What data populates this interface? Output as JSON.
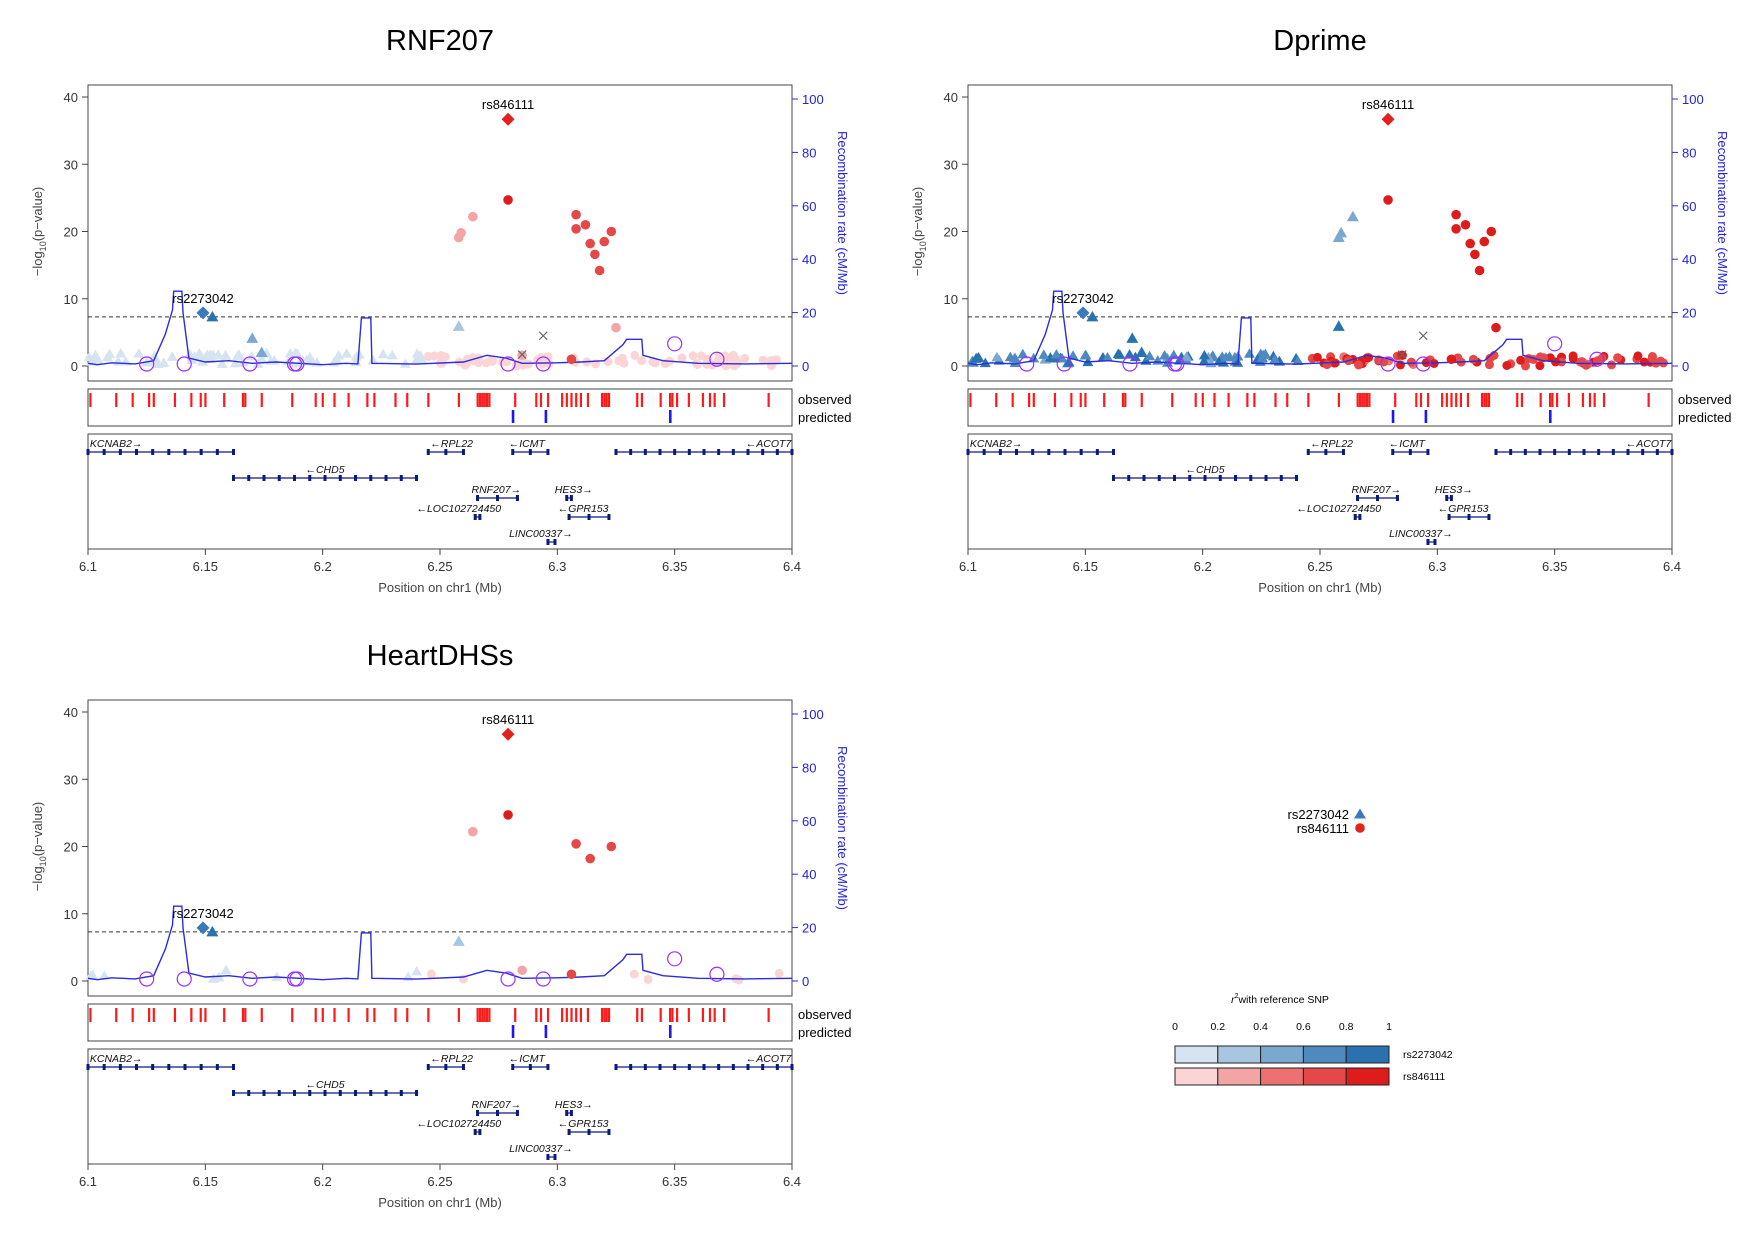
{
  "chart_data": {
    "type": "scatter",
    "panels": [
      {
        "id": "rnf207",
        "title": "RNF207",
        "mode": "rnf",
        "sparse": false
      },
      {
        "id": "dprime",
        "title": "Dprime",
        "mode": "dprime",
        "sparse": false
      },
      {
        "id": "heartdhss",
        "title": "HeartDHSs",
        "mode": "rnf",
        "sparse": true
      }
    ],
    "xlabel": "Position on chr1 (Mb)",
    "ylabel": "−log₁₀(p−value)",
    "ylabel_parts": [
      "−log",
      "10",
      "(p−value)"
    ],
    "y2label": "Recombination rate (cM/Mb)",
    "xlim": [
      6.1,
      6.4
    ],
    "ylim": [
      0,
      40
    ],
    "y2lim": [
      0,
      100
    ],
    "x_ticks": [
      6.1,
      6.15,
      6.2,
      6.25,
      6.3,
      6.35,
      6.4
    ],
    "x_tick_labels": [
      "6.1",
      "6.15",
      "6.2",
      "6.25",
      "6.3",
      "6.35",
      "6.4"
    ],
    "y_ticks": [
      0,
      10,
      20,
      30,
      40
    ],
    "y_tick_labels": [
      "0",
      "10",
      "20",
      "30",
      "40"
    ],
    "y2_ticks": [
      0,
      20,
      40,
      60,
      80,
      100
    ],
    "y2_tick_labels": [
      "0",
      "20",
      "40",
      "60",
      "80",
      "100"
    ],
    "significance_line": 7.3,
    "lead_snps": [
      {
        "name": "rs846111",
        "x": 6.279,
        "y": 36.7,
        "color": "#e3221c",
        "shape": "diamond"
      },
      {
        "name": "rs2273042",
        "x": 6.149,
        "y": 7.9,
        "color": "#3a7ab8",
        "shape": "diamond"
      }
    ],
    "recombination": [
      [
        6.1,
        1
      ],
      [
        6.104,
        0.5
      ],
      [
        6.11,
        1.2
      ],
      [
        6.12,
        0.8
      ],
      [
        6.128,
        2
      ],
      [
        6.133,
        12
      ],
      [
        6.136,
        21
      ],
      [
        6.1365,
        28
      ],
      [
        6.14,
        28
      ],
      [
        6.1405,
        20
      ],
      [
        6.143,
        3
      ],
      [
        6.15,
        1.5
      ],
      [
        6.16,
        2
      ],
      [
        6.17,
        1
      ],
      [
        6.18,
        1.5
      ],
      [
        6.19,
        1
      ],
      [
        6.2,
        0.5
      ],
      [
        6.21,
        1
      ],
      [
        6.215,
        0.8
      ],
      [
        6.2165,
        18
      ],
      [
        6.2205,
        18
      ],
      [
        6.221,
        1
      ],
      [
        6.24,
        0.7
      ],
      [
        6.26,
        1.5
      ],
      [
        6.27,
        4
      ],
      [
        6.278,
        3
      ],
      [
        6.285,
        1
      ],
      [
        6.3,
        1.2
      ],
      [
        6.31,
        1.5
      ],
      [
        6.32,
        2
      ],
      [
        6.328,
        8
      ],
      [
        6.3295,
        10
      ],
      [
        6.336,
        10
      ],
      [
        6.3365,
        4
      ],
      [
        6.345,
        2
      ],
      [
        6.36,
        1
      ],
      [
        6.38,
        0.8
      ],
      [
        6.4,
        1
      ]
    ],
    "points_red": [
      {
        "x": 6.279,
        "y": 24.7,
        "r2": 0.9
      },
      {
        "x": 6.258,
        "y": 19.1,
        "r2": 0.2
      },
      {
        "x": 6.259,
        "y": 19.8,
        "r2": 0.2
      },
      {
        "x": 6.264,
        "y": 22.2,
        "r2": 0.2
      },
      {
        "x": 6.308,
        "y": 22.5,
        "r2": 0.7
      },
      {
        "x": 6.308,
        "y": 20.4,
        "r2": 0.7
      },
      {
        "x": 6.312,
        "y": 21.0,
        "r2": 0.7
      },
      {
        "x": 6.314,
        "y": 18.2,
        "r2": 0.7
      },
      {
        "x": 6.316,
        "y": 16.6,
        "r2": 0.7
      },
      {
        "x": 6.318,
        "y": 14.2,
        "r2": 0.7
      },
      {
        "x": 6.32,
        "y": 18.5,
        "r2": 0.7
      },
      {
        "x": 6.323,
        "y": 20.0,
        "r2": 0.7
      },
      {
        "x": 6.325,
        "y": 5.7,
        "r2": 0.3
      },
      {
        "x": 6.306,
        "y": 1.0,
        "r2": 0.7
      },
      {
        "x": 6.285,
        "y": 1.6,
        "r2": 0.3
      }
    ],
    "points_blue_tri": [
      {
        "x": 6.153,
        "y": 7.3,
        "r2": 0.85
      },
      {
        "x": 6.258,
        "y": 5.9,
        "r2": 0.3
      },
      {
        "x": 6.17,
        "y": 4.1,
        "r2": 0.5
      },
      {
        "x": 6.174,
        "y": 2.0,
        "r2": 0.5
      }
    ],
    "cross_points": [
      {
        "x": 6.294,
        "y": 4.5
      },
      {
        "x": 6.285,
        "y": 1.7
      }
    ],
    "purple_circles": [
      6.125,
      6.141,
      6.169,
      6.188,
      6.189,
      6.279,
      6.294,
      6.35,
      6.368
    ],
    "observed_ticks": [
      6.101,
      6.112,
      6.119,
      6.126,
      6.128,
      6.137,
      6.144,
      6.148,
      6.15,
      6.158,
      6.166,
      6.167,
      6.174,
      6.187,
      6.197,
      6.2,
      6.205,
      6.211,
      6.219,
      6.222,
      6.231,
      6.236,
      6.245,
      6.258,
      6.266,
      6.267,
      6.268,
      6.269,
      6.27,
      6.271,
      6.282,
      6.291,
      6.293,
      6.296,
      6.302,
      6.304,
      6.306,
      6.308,
      6.31,
      6.313,
      6.319,
      6.32,
      6.321,
      6.322,
      6.334,
      6.336,
      6.344,
      6.348,
      6.349,
      6.351,
      6.356,
      6.362,
      6.365,
      6.367,
      6.371,
      6.39
    ],
    "predicted_ticks": [
      6.281,
      6.295,
      6.348
    ],
    "track_labels": {
      "observed": "observed",
      "predicted": "predicted"
    },
    "genes": [
      {
        "name": "KCNAB2",
        "dir": "right",
        "start": 6.1,
        "end": 6.162,
        "row": 0,
        "label_x": 6.112
      },
      {
        "name": "RPL22",
        "dir": "left",
        "start": 6.245,
        "end": 6.26,
        "row": 0,
        "label_x": 6.255
      },
      {
        "name": "ICMT",
        "dir": "left",
        "start": 6.281,
        "end": 6.296,
        "row": 0,
        "label_x": 6.287
      },
      {
        "name": "ACOT7",
        "dir": "left",
        "start": 6.325,
        "end": 6.4,
        "row": 0,
        "label_x": 6.39
      },
      {
        "name": "CHD5",
        "dir": "left",
        "start": 6.162,
        "end": 6.24,
        "row": 1,
        "label_x": 6.201
      },
      {
        "name": "RNF207",
        "dir": "right",
        "start": 6.266,
        "end": 6.283,
        "row": 2,
        "label_x": 6.274
      },
      {
        "name": "HES3",
        "dir": "right",
        "start": 6.304,
        "end": 6.306,
        "row": 2,
        "label_x": 6.307
      },
      {
        "name": "LOC102724450",
        "dir": "left",
        "start": 6.265,
        "end": 6.267,
        "row": 3,
        "label_x": 6.258
      },
      {
        "name": "GPR153",
        "dir": "left",
        "start": 6.305,
        "end": 6.322,
        "row": 3,
        "label_x": 6.311
      },
      {
        "name": "LINC00337",
        "dir": "right",
        "start": 6.296,
        "end": 6.299,
        "row": 4,
        "label_x": 6.293
      }
    ],
    "series": [
      {
        "name": "rs2273042",
        "color": "#3a7ab8",
        "shape": "triangle"
      },
      {
        "name": "rs846111",
        "color": "#e3221c",
        "shape": "circle"
      }
    ],
    "r2_legend": {
      "title_prefix": "r",
      "title_sup": "2",
      "title_rest": "with reference SNP",
      "ticks": [
        "0",
        "0.2",
        "0.4",
        "0.6",
        "0.8",
        "1"
      ],
      "blue_colors": [
        "#d6e4f1",
        "#a8c6e0",
        "#7aa8d0",
        "#4e8ac0",
        "#2a71b0"
      ],
      "red_colors": [
        "#fbd5d5",
        "#f3a5a5",
        "#ec7272",
        "#e54848",
        "#de1c1c"
      ],
      "rows": [
        "rs2273042",
        "rs846111"
      ]
    },
    "colors": {
      "recombination": "#2b2bdf",
      "signif": "#333333",
      "observed": "#ff1a1a",
      "predicted": "#1a1aee",
      "gene": "#0a1a80",
      "purple": "#9b30ff",
      "cross": "#666666"
    }
  }
}
